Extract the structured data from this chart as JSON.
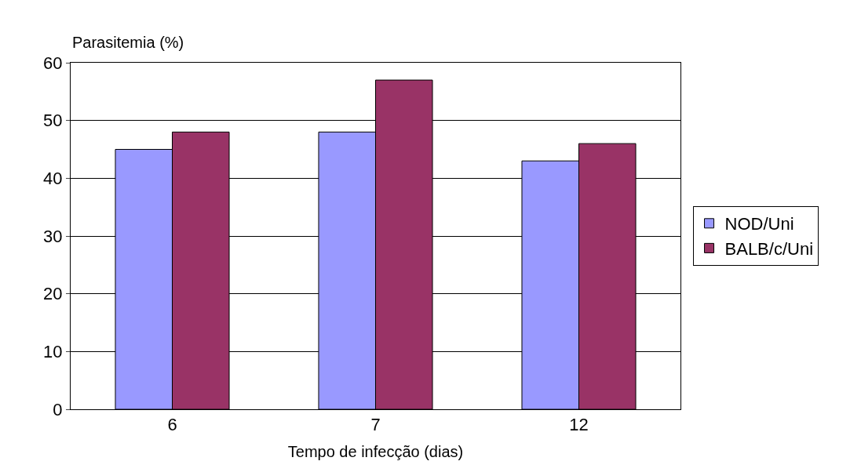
{
  "chart_data": {
    "type": "bar",
    "ylabel": "Parasitemia (%)",
    "xlabel": "Tempo de infecção (dias)",
    "categories": [
      "6",
      "7",
      "12"
    ],
    "series": [
      {
        "name": "NOD/Uni",
        "color": "#9999ff",
        "values": [
          45,
          48,
          43
        ]
      },
      {
        "name": "BALB/c/Uni",
        "color": "#993366",
        "values": [
          48,
          57,
          46
        ]
      }
    ],
    "ylim": [
      0,
      60
    ],
    "yticks": [
      0,
      10,
      20,
      30,
      40,
      50,
      60
    ],
    "grid": "y",
    "legend": "right"
  }
}
